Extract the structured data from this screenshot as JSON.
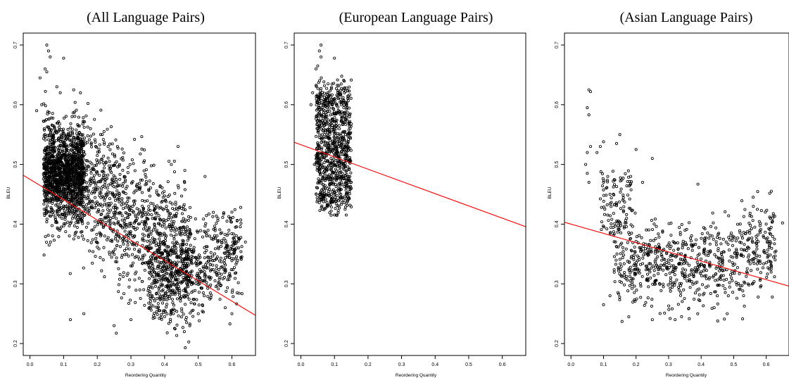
{
  "chart_data": [
    {
      "type": "scatter",
      "title": "(All Language Pairs)",
      "xlabel": "Reordering Quantity",
      "ylabel": "BLEU",
      "xlim": [
        -0.02,
        0.67
      ],
      "ylim": [
        0.18,
        0.72
      ],
      "x_ticks": [
        "0.0",
        "0.1",
        "0.2",
        "0.3",
        "0.4",
        "0.5",
        "0.6"
      ],
      "y_ticks": [
        "0.2",
        "0.3",
        "0.4",
        "0.5",
        "0.6",
        "0.7"
      ],
      "grid": false,
      "point_count": 3200,
      "series": [
        {
          "points": [
            [
              0.05,
              0.7
            ],
            [
              0.055,
              0.69
            ],
            [
              0.06,
              0.68
            ],
            [
              0.1,
              0.678
            ],
            [
              0.045,
              0.66
            ],
            [
              0.05,
              0.655
            ],
            [
              0.03,
              0.645
            ],
            [
              0.08,
              0.63
            ],
            [
              0.09,
              0.62
            ],
            [
              0.13,
              0.625
            ],
            [
              0.15,
              0.62
            ],
            [
              0.035,
              0.6
            ],
            [
              0.02,
              0.59
            ],
            [
              0.21,
              0.55
            ],
            [
              0.22,
              0.555
            ],
            [
              0.26,
              0.53
            ],
            [
              0.44,
              0.53
            ],
            [
              0.42,
              0.5
            ],
            [
              0.46,
              0.49
            ],
            [
              0.52,
              0.48
            ],
            [
              0.6,
              0.42
            ],
            [
              0.64,
              0.37
            ],
            [
              0.62,
              0.36
            ],
            [
              0.16,
              0.25
            ],
            [
              0.12,
              0.24
            ],
            [
              0.25,
              0.23
            ],
            [
              0.3,
              0.24
            ],
            [
              0.4,
              0.245
            ],
            [
              0.5,
              0.25
            ],
            [
              0.58,
              0.26
            ],
            [
              0.6,
              0.25
            ],
            [
              0.3,
              0.33
            ],
            [
              0.35,
              0.36
            ],
            [
              0.45,
              0.35
            ],
            [
              0.55,
              0.32
            ],
            [
              0.2,
              0.42
            ],
            [
              0.1,
              0.47
            ],
            [
              0.12,
              0.5
            ]
          ]
        }
      ],
      "fit_line": {
        "intercept": 0.475,
        "slope": -0.34,
        "color": "#ff0000"
      }
    },
    {
      "type": "scatter",
      "title": "(European Language Pairs)",
      "xlabel": "Reordering Quantity",
      "ylabel": "BLEU",
      "xlim": [
        -0.02,
        0.67
      ],
      "ylim": [
        0.18,
        0.72
      ],
      "x_ticks": [
        "0.0",
        "0.1",
        "0.2",
        "0.3",
        "0.4",
        "0.5",
        "0.6"
      ],
      "y_ticks": [
        "0.2",
        "0.3",
        "0.4",
        "0.5",
        "0.6",
        "0.7"
      ],
      "grid": false,
      "point_count": 900,
      "series": [
        {
          "points": [
            [
              0.06,
              0.7
            ],
            [
              0.055,
              0.69
            ],
            [
              0.06,
              0.68
            ],
            [
              0.1,
              0.678
            ],
            [
              0.045,
              0.66
            ],
            [
              0.05,
              0.665
            ],
            [
              0.035,
              0.62
            ],
            [
              0.03,
              0.6
            ],
            [
              0.13,
              0.62
            ],
            [
              0.14,
              0.61
            ],
            [
              0.08,
              0.62
            ],
            [
              0.12,
              0.6
            ],
            [
              0.09,
              0.415
            ],
            [
              0.08,
              0.43
            ],
            [
              0.06,
              0.44
            ],
            [
              0.14,
              0.44
            ],
            [
              0.15,
              0.46
            ],
            [
              0.1,
              0.5
            ],
            [
              0.07,
              0.55
            ],
            [
              0.11,
              0.52
            ],
            [
              0.04,
              0.5
            ]
          ]
        }
      ],
      "fit_line": {
        "intercept": 0.533,
        "slope": -0.205,
        "color": "#ff0000"
      }
    },
    {
      "type": "scatter",
      "title": "(Asian Language Pairs)",
      "xlabel": "Reordering Quantity",
      "ylabel": "BLEU",
      "xlim": [
        -0.02,
        0.67
      ],
      "ylim": [
        0.18,
        0.72
      ],
      "x_ticks": [
        "0.0",
        "0.1",
        "0.2",
        "0.3",
        "0.4",
        "0.5",
        "0.6"
      ],
      "y_ticks": [
        "0.2",
        "0.3",
        "0.4",
        "0.5",
        "0.6",
        "0.7"
      ],
      "grid": false,
      "point_count": 900,
      "series": [
        {
          "points": [
            [
              0.055,
              0.625
            ],
            [
              0.06,
              0.622
            ],
            [
              0.05,
              0.595
            ],
            [
              0.055,
              0.583
            ],
            [
              0.06,
              0.53
            ],
            [
              0.05,
              0.52
            ],
            [
              0.045,
              0.5
            ],
            [
              0.05,
              0.485
            ],
            [
              0.055,
              0.47
            ],
            [
              0.08,
              0.52
            ],
            [
              0.09,
              0.53
            ],
            [
              0.1,
              0.538
            ],
            [
              0.15,
              0.55
            ],
            [
              0.14,
              0.535
            ],
            [
              0.2,
              0.525
            ],
            [
              0.25,
              0.51
            ],
            [
              0.39,
              0.467
            ],
            [
              0.22,
              0.47
            ],
            [
              0.1,
              0.47
            ],
            [
              0.12,
              0.45
            ],
            [
              0.16,
              0.44
            ],
            [
              0.62,
              0.41
            ],
            [
              0.6,
              0.4
            ],
            [
              0.65,
              0.402
            ],
            [
              0.63,
              0.355
            ],
            [
              0.56,
              0.445
            ],
            [
              0.48,
              0.25
            ],
            [
              0.44,
              0.26
            ],
            [
              0.32,
              0.24
            ],
            [
              0.34,
              0.245
            ],
            [
              0.25,
              0.24
            ],
            [
              0.1,
              0.265
            ],
            [
              0.12,
              0.28
            ],
            [
              0.3,
              0.34
            ],
            [
              0.4,
              0.32
            ]
          ]
        }
      ],
      "fit_line": {
        "intercept": 0.4,
        "slope": -0.155,
        "color": "#ff0000"
      }
    }
  ]
}
